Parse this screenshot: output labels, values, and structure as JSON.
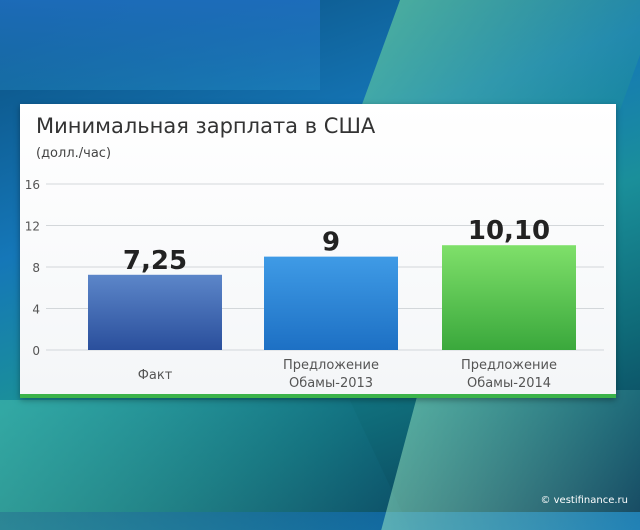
{
  "title": "Минимальная зарплата в США",
  "subtitle": "(долл./час)",
  "watermark": "© vestifinance.ru",
  "colors": {
    "bar1_top": "#5c86c9",
    "bar1_bottom": "#2a4f9c",
    "bar2_top": "#3f9be6",
    "bar2_bottom": "#1d70c4",
    "bar3_top": "#7fe06a",
    "bar3_bottom": "#3aa83c",
    "grid": "#d3d7da",
    "tick": "#555555"
  },
  "chart_data": {
    "type": "bar",
    "categories": [
      [
        "Факт"
      ],
      [
        "Предложение",
        "Обамы-2013"
      ],
      [
        "Предложение",
        "Обамы-2014"
      ]
    ],
    "values": [
      7.25,
      9,
      10.1
    ],
    "value_labels": [
      "7,25",
      "9",
      "10,10"
    ],
    "yticks": [
      0,
      4,
      8,
      12,
      16
    ],
    "ylim": [
      0,
      16
    ],
    "grid": true
  }
}
